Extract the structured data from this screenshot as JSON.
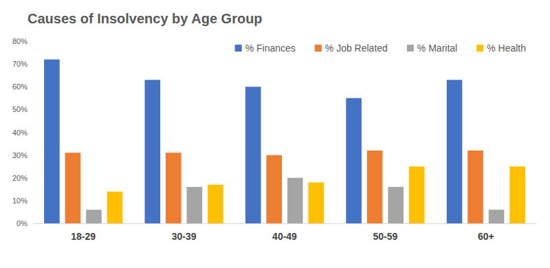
{
  "chart_data": {
    "type": "bar",
    "title": "Causes of Insolvency by Age Group",
    "categories": [
      "18-29",
      "30-39",
      "40-49",
      "50-59",
      "60+"
    ],
    "series": [
      {
        "name": "% Finances",
        "color": "#4472c4",
        "values": [
          72,
          63,
          60,
          55,
          63
        ]
      },
      {
        "name": "% Job Related",
        "color": "#ed7d31",
        "values": [
          31,
          31,
          30,
          32,
          32
        ]
      },
      {
        "name": "% Marital",
        "color": "#a5a5a5",
        "values": [
          6,
          16,
          20,
          16,
          6
        ]
      },
      {
        "name": "% Health",
        "color": "#ffc000",
        "values": [
          14,
          17,
          18,
          25,
          25
        ]
      }
    ],
    "ylim": [
      0,
      80
    ],
    "yticks": [
      {
        "value": 0,
        "label": "0%"
      },
      {
        "value": 10,
        "label": "10%"
      },
      {
        "value": 20,
        "label": "20%"
      },
      {
        "value": 30,
        "label": "30%"
      },
      {
        "value": 40,
        "label": "40%"
      },
      {
        "value": 50,
        "label": "50%"
      },
      {
        "value": 60,
        "label": "60%"
      },
      {
        "value": 70,
        "label": "70%"
      },
      {
        "value": 80,
        "label": "80%"
      }
    ],
    "grid": false,
    "legend": "top-right"
  }
}
